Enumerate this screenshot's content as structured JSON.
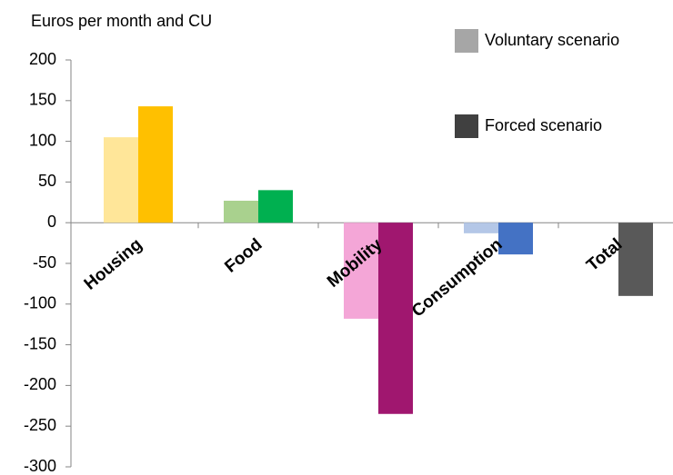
{
  "chart_data": {
    "type": "bar",
    "y_label": "Euros per month and CU",
    "categories": [
      "Housing",
      "Food",
      "Mobility",
      "Consumption",
      "Total"
    ],
    "series": [
      {
        "name": "Voluntary scenario",
        "color": "#a6a6a6",
        "colors": [
          "#ffe699",
          "#a9d18e",
          "#f4a6d7",
          "#b4c7e7",
          "#a6a6a6"
        ],
        "values": [
          105,
          27,
          -118,
          -13,
          null
        ]
      },
      {
        "name": "Forced scenario",
        "color": "#404040",
        "colors": [
          "#ffc000",
          "#00b050",
          "#a0176f",
          "#4472c4",
          "#595959"
        ],
        "values": [
          143,
          40,
          -235,
          -39,
          -90
        ]
      }
    ],
    "ylim": [
      -300,
      200
    ],
    "yticks": [
      -300,
      -250,
      -200,
      -150,
      -100,
      -50,
      0,
      50,
      100,
      150,
      200
    ],
    "grid": false,
    "legend": "top-right"
  }
}
